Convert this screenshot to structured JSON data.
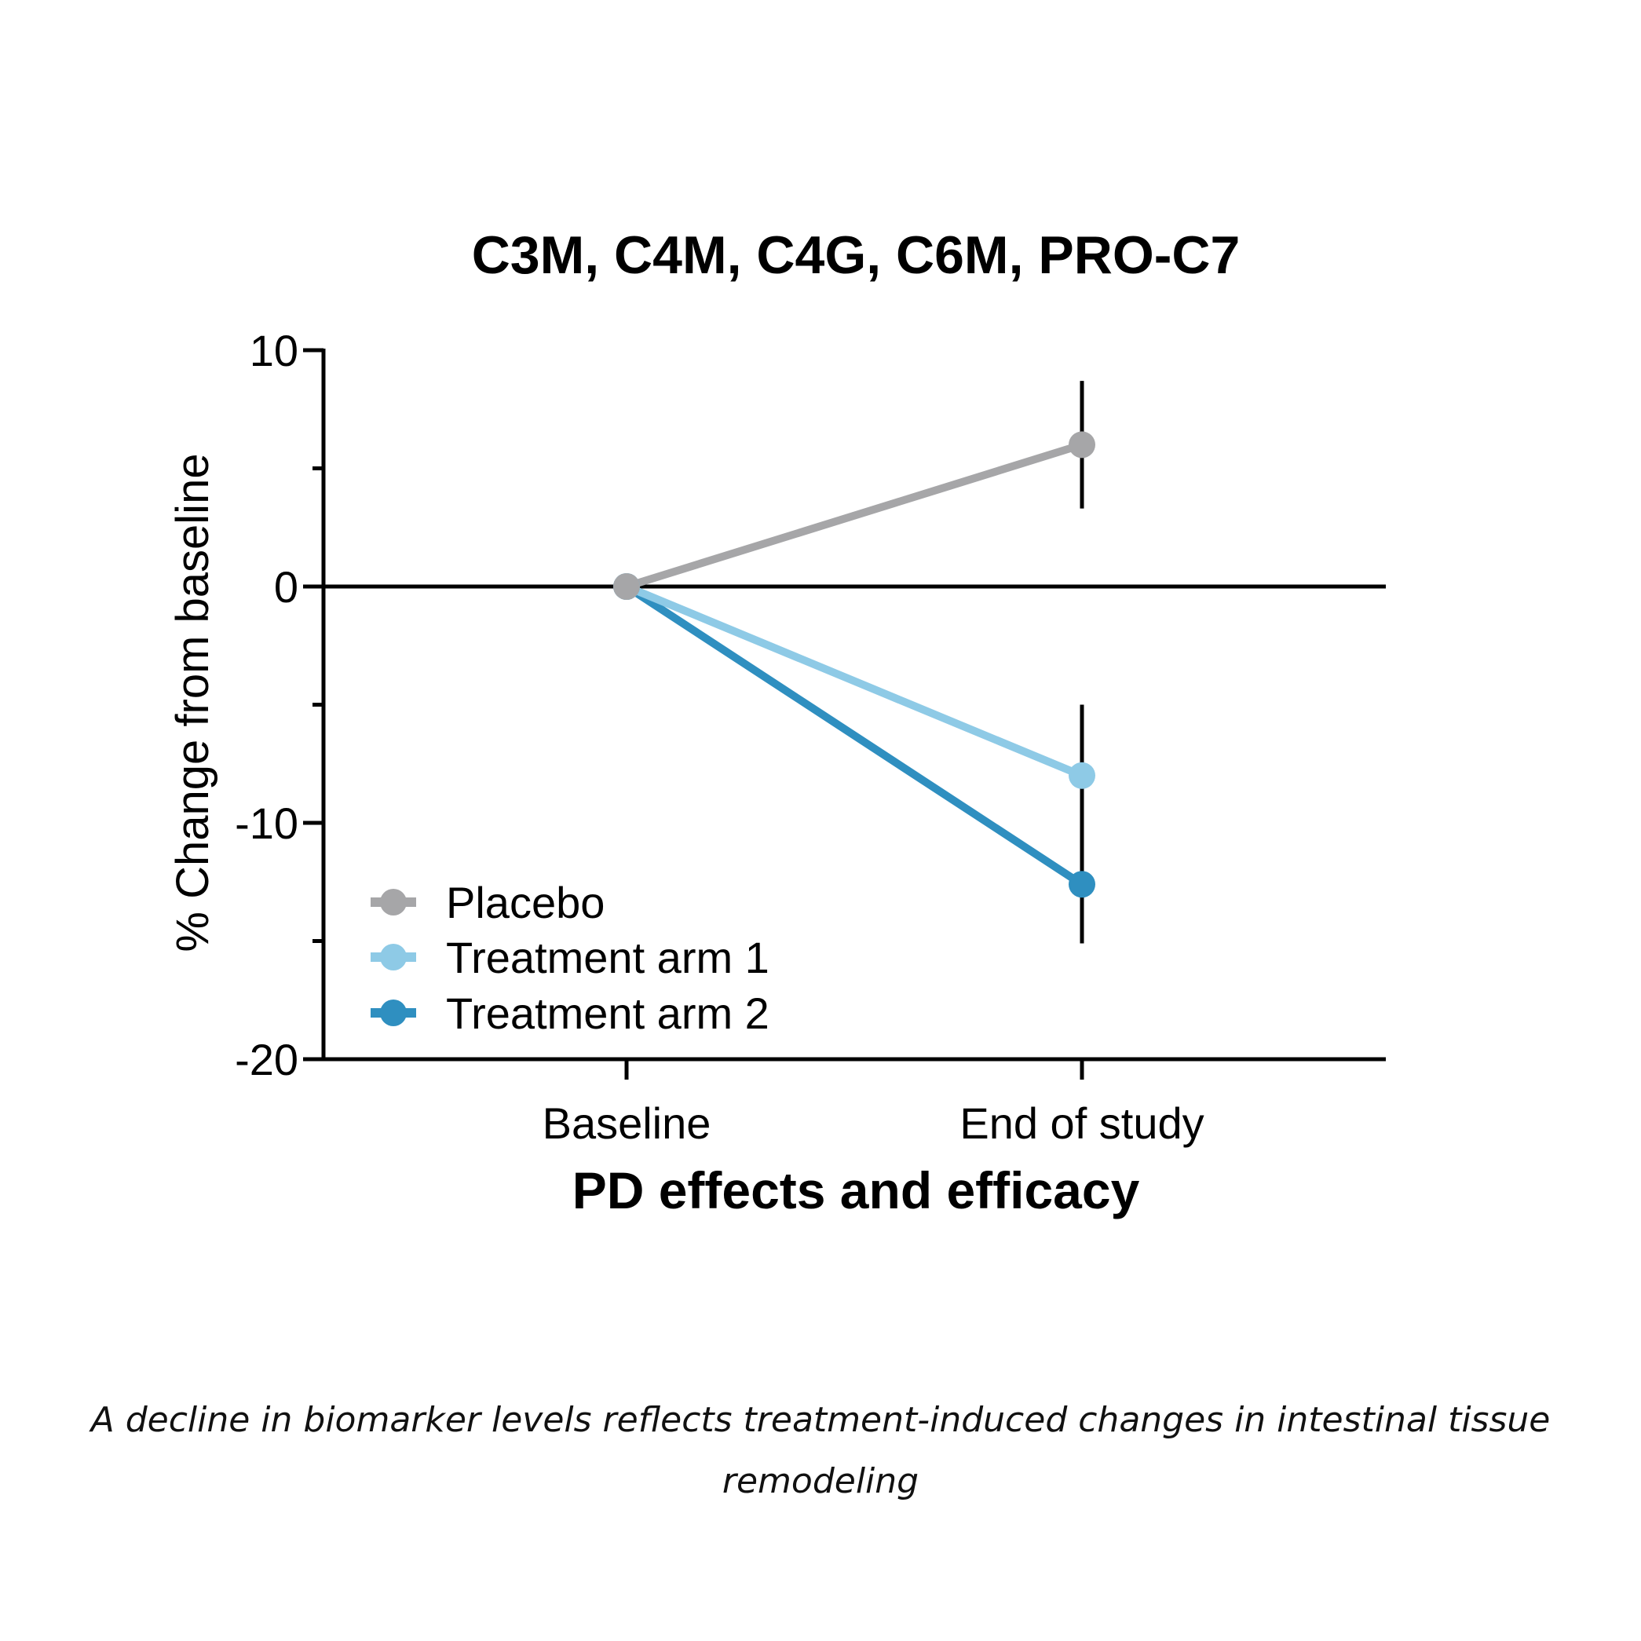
{
  "chart_data": {
    "type": "line",
    "title": "C3M, C4M, C4G, C6M,  PRO-C7",
    "xlabel": "PD effects and efficacy",
    "ylabel": "% Change from baseline",
    "categories": [
      "Baseline",
      "End of study"
    ],
    "ylim": [
      -20,
      10
    ],
    "yticks": [
      10,
      0,
      -10,
      -20
    ],
    "ytick_labels": [
      "10",
      "0",
      "-10",
      "-20"
    ],
    "yminor_ticks": [
      5,
      -5,
      -15
    ],
    "zero_line": true,
    "grid": false,
    "legend_position": "bottom-left",
    "series": [
      {
        "name": "Placebo",
        "color": "#a6a6a8",
        "values": [
          0,
          6.0
        ],
        "error": [
          null,
          2.7
        ]
      },
      {
        "name": "Treatment arm 1",
        "color": "#8ecae6",
        "values": [
          0,
          -8.0
        ],
        "error": [
          null,
          3.0
        ]
      },
      {
        "name": "Treatment arm 2",
        "color": "#2f8fc0",
        "values": [
          0,
          -12.6
        ],
        "error": [
          null,
          2.5
        ]
      }
    ]
  },
  "caption": "A decline in biomarker levels reflects treatment-induced changes in intestinal tissue remodeling"
}
